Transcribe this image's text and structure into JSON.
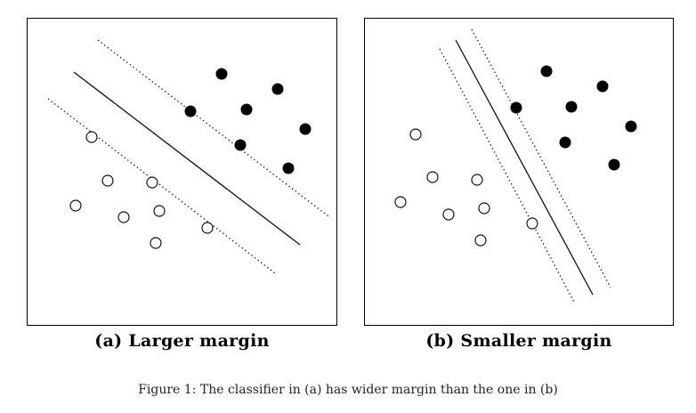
{
  "figure": {
    "caption": "Figure 1: The classifier in (a) has wider margin than the one in (b)"
  },
  "panels": [
    {
      "id": "a",
      "label": "(a) Larger margin",
      "positive_points": [
        [
          218,
          62
        ],
        [
          183,
          104
        ],
        [
          246,
          102
        ],
        [
          281,
          79
        ],
        [
          312,
          124
        ],
        [
          239,
          142
        ],
        [
          293,
          168
        ]
      ],
      "negative_points": [
        [
          72,
          133
        ],
        [
          90,
          182
        ],
        [
          140,
          184
        ],
        [
          54,
          210
        ],
        [
          108,
          223
        ],
        [
          148,
          216
        ],
        [
          202,
          235
        ],
        [
          144,
          252
        ]
      ],
      "decision_line": [
        [
          52,
          60
        ],
        [
          306,
          254
        ]
      ],
      "margin_lines": [
        [
          [
            79,
            24
          ],
          [
            338,
            222
          ]
        ],
        [
          [
            23,
            90
          ],
          [
            278,
            286
          ]
        ]
      ]
    },
    {
      "id": "b",
      "label": "(b) Smaller margin",
      "positive_points": [
        [
          204,
          59
        ],
        [
          170,
          100
        ],
        [
          232,
          99
        ],
        [
          267,
          76
        ],
        [
          299,
          121
        ],
        [
          225,
          139
        ],
        [
          280,
          164
        ]
      ],
      "negative_points": [
        [
          57,
          130
        ],
        [
          76,
          178
        ],
        [
          126,
          181
        ],
        [
          40,
          206
        ],
        [
          94,
          220
        ],
        [
          134,
          213
        ],
        [
          188,
          230
        ],
        [
          130,
          249
        ]
      ],
      "decision_line": [
        [
          102,
          24
        ],
        [
          256,
          310
        ]
      ],
      "margin_lines": [
        [
          [
            120,
            12
          ],
          [
            276,
            302
          ]
        ],
        [
          [
            84,
            34
          ],
          [
            236,
            320
          ]
        ]
      ]
    }
  ]
}
